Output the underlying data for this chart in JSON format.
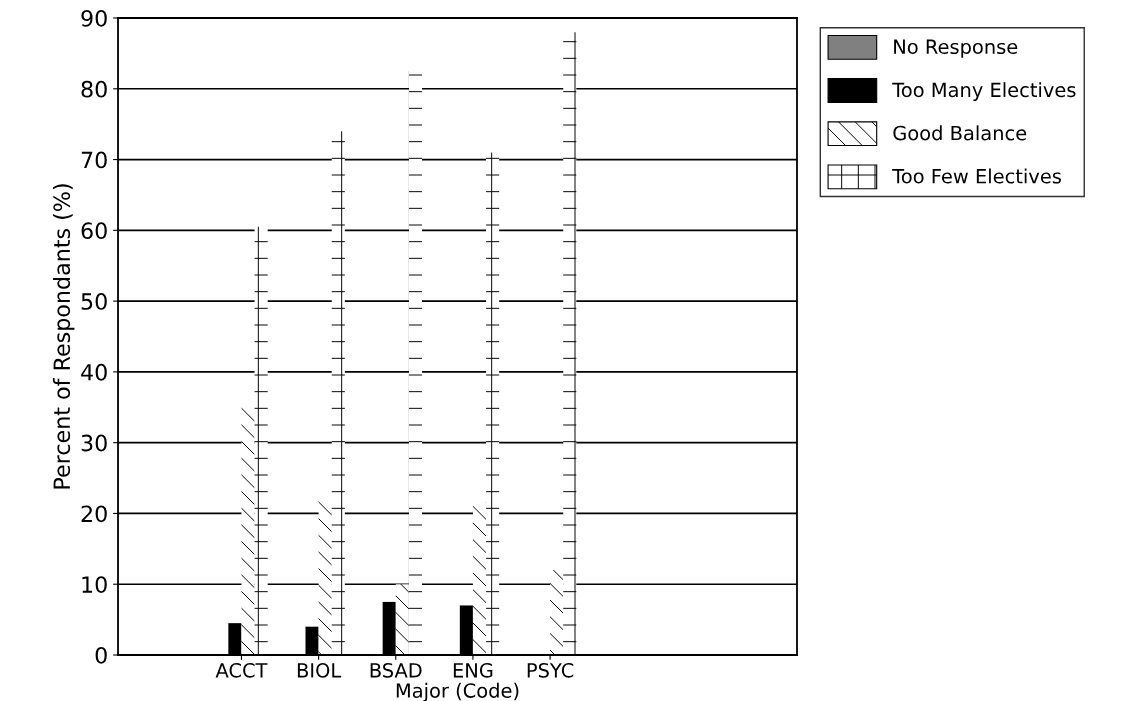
{
  "chart_data": {
    "type": "bar",
    "xlabel": "Major (Code)",
    "ylabel": "Percent of Respondants (%)",
    "categories": [
      "ACCT",
      "BIOL",
      "BSAD",
      "ENG",
      "PSYC"
    ],
    "series": [
      {
        "name": "No Response",
        "color": "#808080",
        "values": [
          0,
          0,
          0,
          0,
          0
        ]
      },
      {
        "name": "Too Many Electives",
        "color": "#000000",
        "values": [
          4.5,
          4,
          7.5,
          7,
          0
        ]
      },
      {
        "name": "Good Balance",
        "color": "#ffffff",
        "values": [
          35,
          22,
          10,
          21.5,
          12
        ]
      },
      {
        "name": "Too Few Electives",
        "color": "#ffffff",
        "values": [
          60.5,
          74,
          82.5,
          71,
          88
        ]
      }
    ],
    "ylim": [
      0,
      90
    ],
    "yticks": [
      0,
      10,
      20,
      30,
      40,
      50,
      60,
      70,
      80,
      90
    ],
    "grid": "y",
    "legend": "top right"
  }
}
